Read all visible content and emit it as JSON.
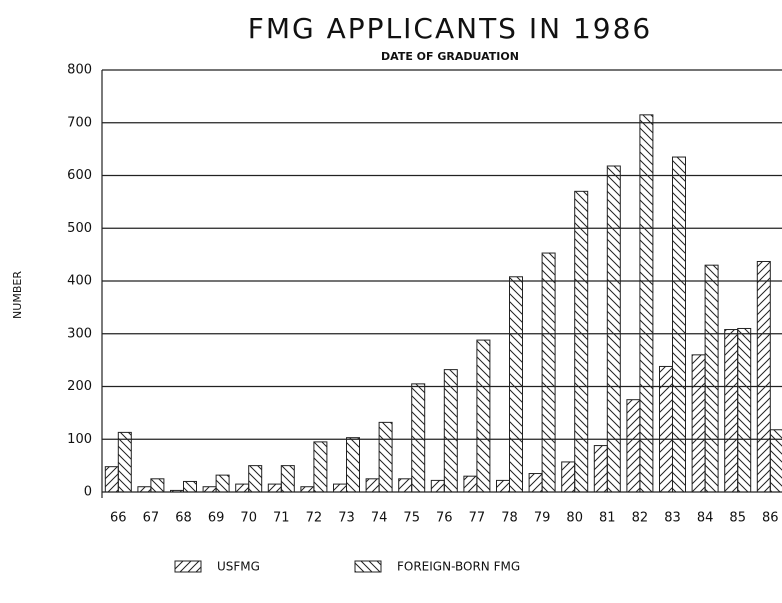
{
  "chart_data": {
    "type": "bar",
    "title": "FMG APPLICANTS IN 1986",
    "subtitle": "DATE OF GRADUATION",
    "y_label": "NUMBER",
    "categories": [
      "66",
      "67",
      "68",
      "69",
      "70",
      "71",
      "72",
      "73",
      "74",
      "75",
      "76",
      "77",
      "78",
      "79",
      "80",
      "81",
      "82",
      "83",
      "84",
      "85",
      "86"
    ],
    "series": [
      {
        "name": "USFMG",
        "color": "#222",
        "values": [
          48,
          10,
          3,
          10,
          15,
          15,
          10,
          15,
          25,
          25,
          22,
          30,
          22,
          35,
          57,
          88,
          175,
          238,
          260,
          308,
          437
        ]
      },
      {
        "name": "FOREIGN-BORN FMG",
        "color": "#222",
        "values": [
          113,
          25,
          20,
          32,
          50,
          50,
          95,
          103,
          132,
          205,
          232,
          288,
          408,
          453,
          570,
          618,
          715,
          635,
          430,
          310,
          118
        ]
      }
    ],
    "ylim": [
      0,
      800
    ],
    "yticks": [
      0,
      100,
      200,
      300,
      400,
      500,
      600,
      700,
      800
    ],
    "grid": true
  }
}
